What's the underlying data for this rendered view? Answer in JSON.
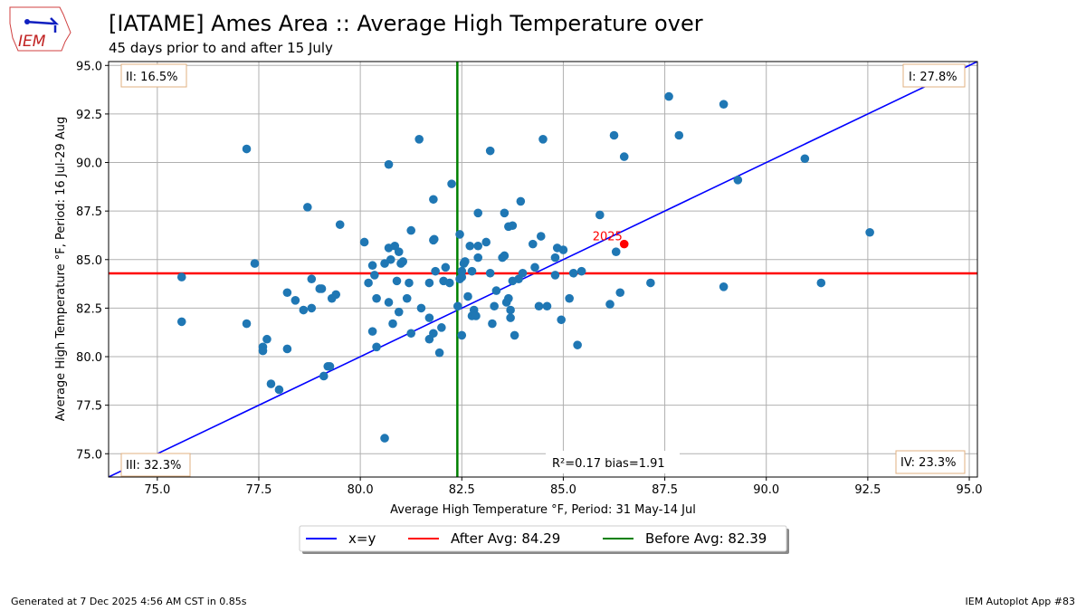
{
  "header": {
    "title": "[IATAME] Ames Area :: Average High Temperature over",
    "subtitle": "45 days prior to and after 15 July",
    "logo_text": "IEM"
  },
  "footer": {
    "left": "Generated at 7 Dec 2025 4:56 AM CST in 0.85s",
    "right": "IEM Autoplot App #83"
  },
  "chart_data": {
    "type": "scatter",
    "xlabel": "Average High Temperature °F, Period: 31 May-14 Jul",
    "ylabel": "Average High Temperature °F, Period: 16 Jul-29 Aug",
    "xlim": [
      73.8,
      95.2
    ],
    "ylim": [
      73.8,
      95.2
    ],
    "xticks": [
      "75.0",
      "77.5",
      "80.0",
      "82.5",
      "85.0",
      "87.5",
      "90.0",
      "92.5",
      "95.0"
    ],
    "yticks": [
      "75.0",
      "77.5",
      "80.0",
      "82.5",
      "85.0",
      "87.5",
      "90.0",
      "92.5",
      "95.0"
    ],
    "grid": true,
    "point_color": "#1f77b4",
    "points": [
      [
        75.6,
        84.1
      ],
      [
        75.6,
        81.8
      ],
      [
        77.2,
        81.7
      ],
      [
        77.2,
        90.7
      ],
      [
        77.4,
        84.8
      ],
      [
        77.6,
        80.5
      ],
      [
        77.6,
        80.3
      ],
      [
        77.7,
        80.9
      ],
      [
        77.8,
        78.6
      ],
      [
        78.0,
        78.3
      ],
      [
        78.2,
        83.3
      ],
      [
        78.2,
        80.4
      ],
      [
        78.4,
        82.9
      ],
      [
        78.6,
        82.4
      ],
      [
        78.7,
        87.7
      ],
      [
        78.8,
        84.0
      ],
      [
        78.8,
        82.5
      ],
      [
        79.0,
        83.5
      ],
      [
        79.05,
        83.5
      ],
      [
        79.2,
        79.5
      ],
      [
        79.25,
        79.5
      ],
      [
        79.1,
        79.0
      ],
      [
        79.3,
        83.0
      ],
      [
        79.4,
        83.2
      ],
      [
        79.5,
        86.8
      ],
      [
        80.1,
        85.9
      ],
      [
        80.2,
        83.8
      ],
      [
        80.3,
        84.7
      ],
      [
        80.35,
        84.2
      ],
      [
        80.3,
        81.3
      ],
      [
        80.4,
        80.5
      ],
      [
        80.4,
        83.0
      ],
      [
        80.6,
        75.8
      ],
      [
        80.6,
        84.8
      ],
      [
        80.7,
        85.6
      ],
      [
        80.75,
        85.0
      ],
      [
        80.7,
        89.9
      ],
      [
        80.7,
        82.8
      ],
      [
        80.85,
        85.7
      ],
      [
        80.8,
        81.7
      ],
      [
        80.9,
        83.9
      ],
      [
        80.95,
        85.4
      ],
      [
        80.95,
        82.3
      ],
      [
        81.0,
        84.8
      ],
      [
        81.05,
        84.9
      ],
      [
        81.15,
        83.0
      ],
      [
        81.2,
        83.8
      ],
      [
        81.25,
        86.5
      ],
      [
        81.25,
        81.2
      ],
      [
        81.45,
        91.2
      ],
      [
        81.5,
        82.5
      ],
      [
        81.7,
        83.8
      ],
      [
        81.7,
        82.0
      ],
      [
        81.7,
        80.9
      ],
      [
        81.8,
        81.2
      ],
      [
        81.8,
        88.1
      ],
      [
        81.8,
        86.0
      ],
      [
        81.82,
        86.05
      ],
      [
        81.85,
        84.4
      ],
      [
        81.95,
        80.2
      ],
      [
        82.0,
        81.5
      ],
      [
        82.05,
        83.9
      ],
      [
        82.1,
        84.6
      ],
      [
        82.2,
        83.8
      ],
      [
        82.25,
        88.9
      ],
      [
        82.4,
        82.6
      ],
      [
        82.45,
        86.3
      ],
      [
        82.45,
        84.0
      ],
      [
        82.5,
        84.4
      ],
      [
        82.55,
        84.8
      ],
      [
        82.58,
        84.9
      ],
      [
        82.5,
        84.1
      ],
      [
        82.5,
        81.1
      ],
      [
        82.65,
        83.1
      ],
      [
        82.7,
        85.7
      ],
      [
        82.75,
        84.4
      ],
      [
        82.75,
        82.1
      ],
      [
        82.8,
        82.4
      ],
      [
        82.85,
        82.1
      ],
      [
        82.9,
        87.4
      ],
      [
        82.9,
        85.7
      ],
      [
        82.9,
        85.1
      ],
      [
        83.1,
        85.9
      ],
      [
        83.2,
        90.6
      ],
      [
        83.2,
        84.3
      ],
      [
        83.25,
        81.7
      ],
      [
        83.3,
        82.6
      ],
      [
        83.35,
        83.4
      ],
      [
        83.5,
        85.1
      ],
      [
        83.55,
        85.2
      ],
      [
        83.55,
        87.4
      ],
      [
        83.6,
        82.8
      ],
      [
        83.65,
        83.0
      ],
      [
        83.7,
        82.4
      ],
      [
        83.7,
        82.0
      ],
      [
        83.65,
        86.7
      ],
      [
        83.75,
        86.75
      ],
      [
        83.75,
        83.9
      ],
      [
        83.8,
        81.1
      ],
      [
        83.9,
        84.0
      ],
      [
        83.95,
        88.0
      ],
      [
        84.0,
        84.3
      ],
      [
        84.25,
        85.8
      ],
      [
        84.3,
        84.6
      ],
      [
        84.4,
        82.6
      ],
      [
        84.45,
        86.2
      ],
      [
        84.5,
        91.2
      ],
      [
        84.6,
        82.6
      ],
      [
        84.8,
        85.1
      ],
      [
        84.8,
        84.2
      ],
      [
        84.85,
        85.6
      ],
      [
        84.95,
        81.9
      ],
      [
        85.0,
        85.5
      ],
      [
        85.15,
        83.0
      ],
      [
        85.25,
        84.3
      ],
      [
        85.35,
        80.6
      ],
      [
        85.45,
        84.4
      ],
      [
        85.9,
        87.3
      ],
      [
        86.15,
        82.7
      ],
      [
        86.25,
        91.4
      ],
      [
        86.3,
        85.4
      ],
      [
        86.4,
        83.3
      ],
      [
        86.5,
        90.3
      ],
      [
        87.15,
        83.8
      ],
      [
        87.6,
        93.4
      ],
      [
        87.85,
        91.4
      ],
      [
        88.95,
        93.0
      ],
      [
        88.95,
        83.6
      ],
      [
        89.3,
        89.1
      ],
      [
        90.95,
        90.2
      ],
      [
        91.35,
        83.8
      ],
      [
        92.55,
        86.4
      ]
    ],
    "highlight": {
      "label": "2025",
      "x": 86.5,
      "y": 85.8,
      "color": "#ff0000"
    },
    "reference_lines": {
      "x_equals_y": {
        "label": "x=y",
        "color": "#0000ff"
      },
      "after_avg": {
        "label": "After Avg: 84.29",
        "value": 84.29,
        "color": "#ff0000"
      },
      "before_avg": {
        "label": "Before Avg: 82.39",
        "value": 82.39,
        "color": "#008000"
      }
    },
    "quadrants": {
      "I": "I: 27.8%",
      "II": "II: 16.5%",
      "III": "III: 32.3%",
      "IV": "IV: 23.3%"
    },
    "stats": "R²=0.17 bias=1.91",
    "legend_placement": "bottom-center"
  }
}
